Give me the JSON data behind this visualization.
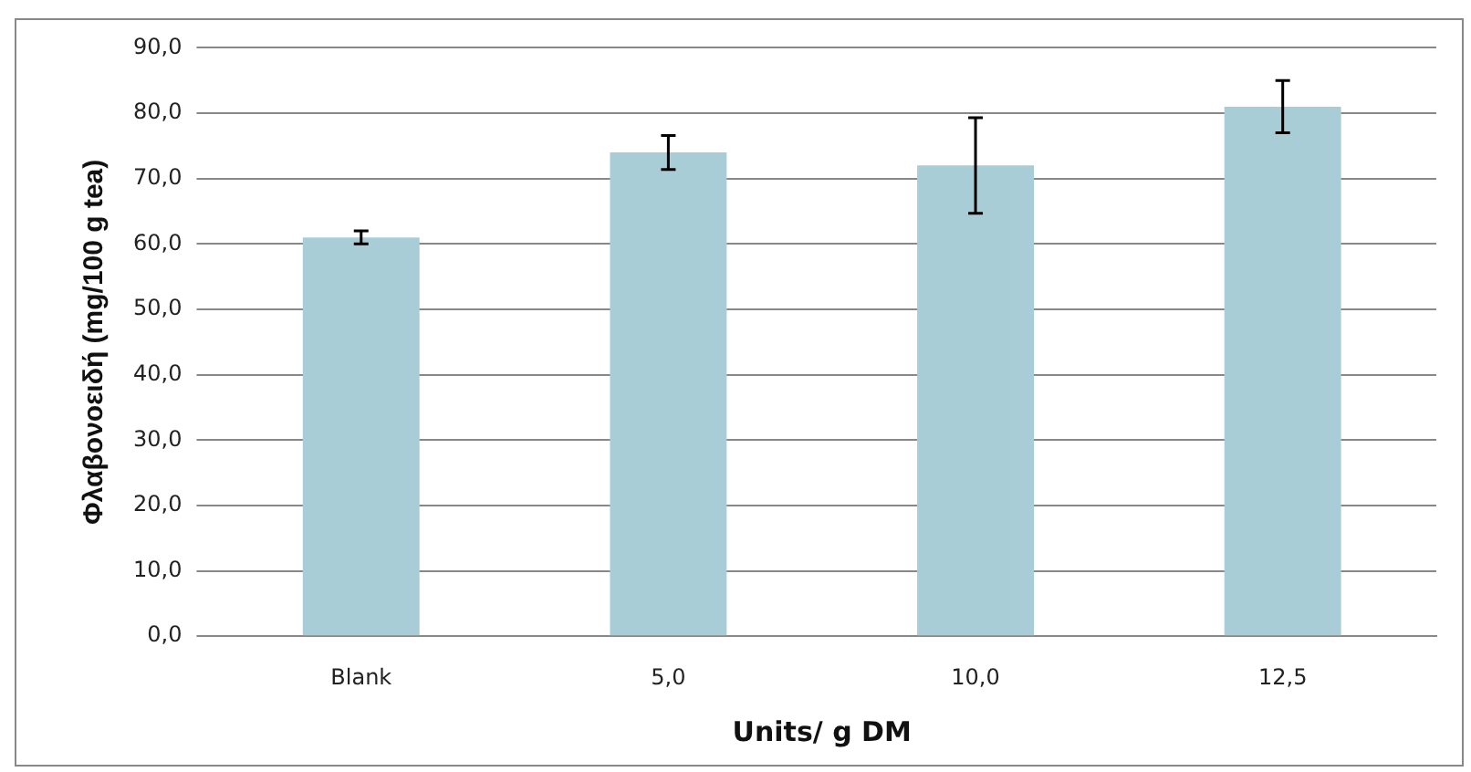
{
  "chart_data": {
    "type": "bar",
    "xlabel": "Units/ g DM",
    "ylabel": "Φλαβονοειδή (mg/100 g tea)",
    "categories": [
      "Blank",
      "5,0",
      "10,0",
      "12,5"
    ],
    "values": [
      61,
      74,
      72,
      81
    ],
    "errors": [
      1,
      2.6,
      7.3,
      4
    ],
    "color": "#a8cdd7",
    "ylim": [
      0,
      90
    ],
    "yticks": [
      {
        "value": 0,
        "label": "0,0"
      },
      {
        "value": 10,
        "label": "10,0"
      },
      {
        "value": 20,
        "label": "20,0"
      },
      {
        "value": 30,
        "label": "30,0"
      },
      {
        "value": 40,
        "label": "40,0"
      },
      {
        "value": 50,
        "label": "50,0"
      },
      {
        "value": 60,
        "label": "60,0"
      },
      {
        "value": 70,
        "label": "70,0"
      },
      {
        "value": 80,
        "label": "80,0"
      },
      {
        "value": 90,
        "label": "90,0"
      }
    ],
    "grid": "y",
    "legend": false
  }
}
